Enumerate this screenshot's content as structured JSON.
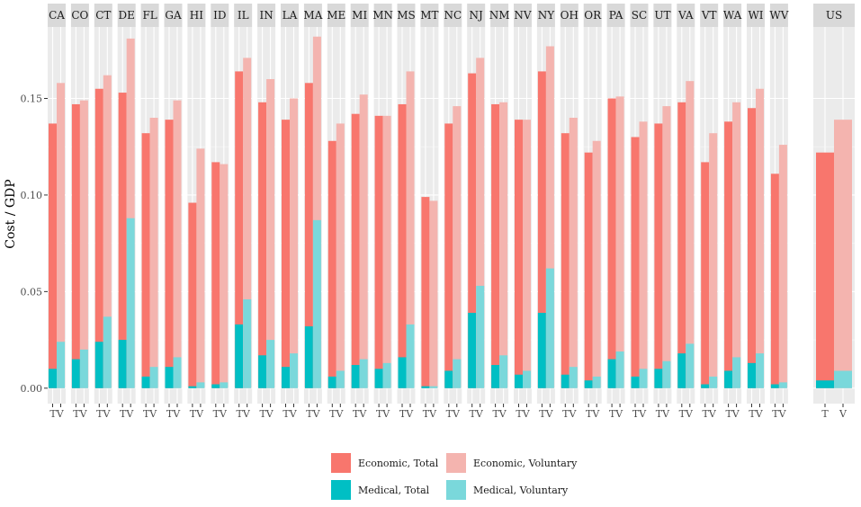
{
  "chart_data": {
    "type": "bar",
    "ylabel": "Cost / GDP",
    "xlabel": "",
    "ylim": [
      -0.008,
      0.187
    ],
    "yticks": [
      0.0,
      0.05,
      0.1,
      0.15
    ],
    "ytick_labels": [
      "0.00",
      "0.05",
      "0.10",
      "0.15"
    ],
    "grid": true,
    "legend_position": "bottom",
    "colors": {
      "economic_total": "#F8766D",
      "economic_voluntary": "#F4B4AF",
      "medical_total": "#00BFC4",
      "medical_voluntary": "#7AD8DB",
      "panel_bg": "#EBEBEB",
      "strip_bg": "#D9D9D9"
    },
    "legend": [
      {
        "key": "economic_total",
        "label": "Economic, Total"
      },
      {
        "key": "economic_voluntary",
        "label": "Economic, Voluntary"
      },
      {
        "key": "medical_total",
        "label": "Medical, Total"
      },
      {
        "key": "medical_voluntary",
        "label": "Medical, Voluntary"
      }
    ],
    "state_panels": [
      {
        "state": "CA",
        "t_econ": 0.137,
        "v_econ": 0.158,
        "t_med": 0.01,
        "v_med": 0.024
      },
      {
        "state": "CO",
        "t_econ": 0.147,
        "v_econ": 0.149,
        "t_med": 0.015,
        "v_med": 0.02
      },
      {
        "state": "CT",
        "t_econ": 0.155,
        "v_econ": 0.162,
        "t_med": 0.024,
        "v_med": 0.037
      },
      {
        "state": "DE",
        "t_econ": 0.153,
        "v_econ": 0.181,
        "t_med": 0.025,
        "v_med": 0.088
      },
      {
        "state": "FL",
        "t_econ": 0.132,
        "v_econ": 0.14,
        "t_med": 0.006,
        "v_med": 0.011
      },
      {
        "state": "GA",
        "t_econ": 0.139,
        "v_econ": 0.149,
        "t_med": 0.011,
        "v_med": 0.016
      },
      {
        "state": "HI",
        "t_econ": 0.096,
        "v_econ": 0.124,
        "t_med": 0.001,
        "v_med": 0.003
      },
      {
        "state": "ID",
        "t_econ": 0.117,
        "v_econ": 0.116,
        "t_med": 0.002,
        "v_med": 0.003
      },
      {
        "state": "IL",
        "t_econ": 0.164,
        "v_econ": 0.171,
        "t_med": 0.033,
        "v_med": 0.046
      },
      {
        "state": "IN",
        "t_econ": 0.148,
        "v_econ": 0.16,
        "t_med": 0.017,
        "v_med": 0.025
      },
      {
        "state": "LA",
        "t_econ": 0.139,
        "v_econ": 0.15,
        "t_med": 0.011,
        "v_med": 0.018
      },
      {
        "state": "MA",
        "t_econ": 0.158,
        "v_econ": 0.182,
        "t_med": 0.032,
        "v_med": 0.087
      },
      {
        "state": "ME",
        "t_econ": 0.128,
        "v_econ": 0.137,
        "t_med": 0.006,
        "v_med": 0.009
      },
      {
        "state": "MI",
        "t_econ": 0.142,
        "v_econ": 0.152,
        "t_med": 0.012,
        "v_med": 0.015
      },
      {
        "state": "MN",
        "t_econ": 0.141,
        "v_econ": 0.141,
        "t_med": 0.01,
        "v_med": 0.013
      },
      {
        "state": "MS",
        "t_econ": 0.147,
        "v_econ": 0.164,
        "t_med": 0.016,
        "v_med": 0.033
      },
      {
        "state": "MT",
        "t_econ": 0.099,
        "v_econ": 0.097,
        "t_med": 0.001,
        "v_med": 0.001
      },
      {
        "state": "NC",
        "t_econ": 0.137,
        "v_econ": 0.146,
        "t_med": 0.009,
        "v_med": 0.015
      },
      {
        "state": "NJ",
        "t_econ": 0.163,
        "v_econ": 0.171,
        "t_med": 0.039,
        "v_med": 0.053
      },
      {
        "state": "NM",
        "t_econ": 0.147,
        "v_econ": 0.148,
        "t_med": 0.012,
        "v_med": 0.017
      },
      {
        "state": "NV",
        "t_econ": 0.139,
        "v_econ": 0.139,
        "t_med": 0.007,
        "v_med": 0.009
      },
      {
        "state": "NY",
        "t_econ": 0.164,
        "v_econ": 0.177,
        "t_med": 0.039,
        "v_med": 0.062
      },
      {
        "state": "OH",
        "t_econ": 0.132,
        "v_econ": 0.14,
        "t_med": 0.007,
        "v_med": 0.011
      },
      {
        "state": "OR",
        "t_econ": 0.122,
        "v_econ": 0.128,
        "t_med": 0.004,
        "v_med": 0.006
      },
      {
        "state": "PA",
        "t_econ": 0.15,
        "v_econ": 0.151,
        "t_med": 0.015,
        "v_med": 0.019
      },
      {
        "state": "SC",
        "t_econ": 0.13,
        "v_econ": 0.138,
        "t_med": 0.006,
        "v_med": 0.01
      },
      {
        "state": "UT",
        "t_econ": 0.137,
        "v_econ": 0.146,
        "t_med": 0.01,
        "v_med": 0.014
      },
      {
        "state": "VA",
        "t_econ": 0.148,
        "v_econ": 0.159,
        "t_med": 0.018,
        "v_med": 0.023
      },
      {
        "state": "VT",
        "t_econ": 0.117,
        "v_econ": 0.132,
        "t_med": 0.002,
        "v_med": 0.006
      },
      {
        "state": "WA",
        "t_econ": 0.138,
        "v_econ": 0.148,
        "t_med": 0.009,
        "v_med": 0.016
      },
      {
        "state": "WI",
        "t_econ": 0.145,
        "v_econ": 0.155,
        "t_med": 0.013,
        "v_med": 0.018
      },
      {
        "state": "WV",
        "t_econ": 0.111,
        "v_econ": 0.126,
        "t_med": 0.002,
        "v_med": 0.003
      }
    ],
    "state_x_tick_label": "TV",
    "us_panel": {
      "state": "US",
      "x_tick_labels": [
        "T",
        "V"
      ],
      "t_econ": 0.122,
      "v_econ": 0.139,
      "t_med": 0.004,
      "v_med": 0.009
    }
  }
}
